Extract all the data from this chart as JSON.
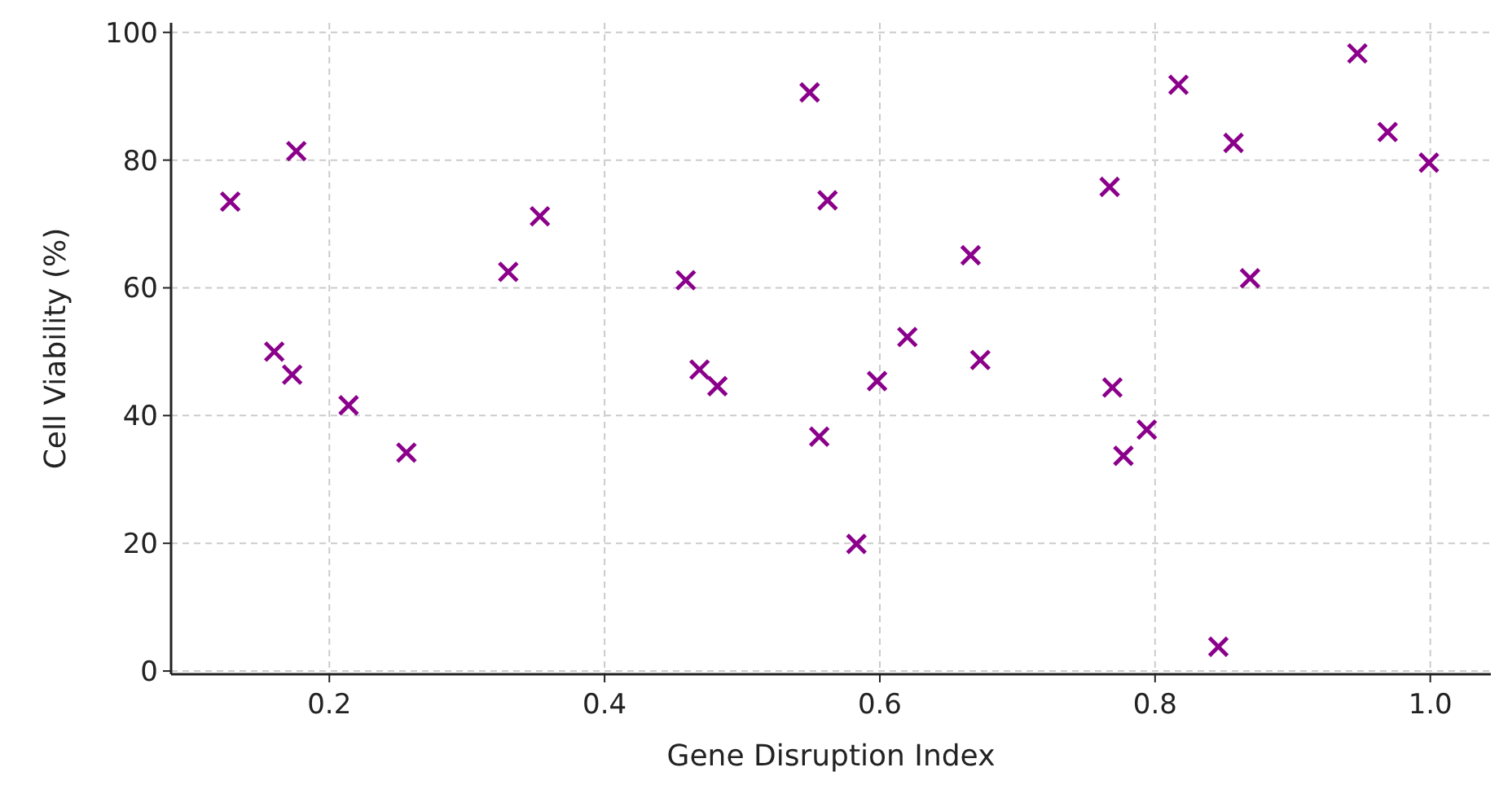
{
  "chart_data": {
    "type": "scatter",
    "xlabel": "Gene Disruption Index",
    "ylabel": "Cell Viability (%)",
    "x": [
      0.128,
      0.176,
      0.16,
      0.173,
      0.214,
      0.256,
      0.33,
      0.353,
      0.459,
      0.469,
      0.482,
      0.549,
      0.556,
      0.562,
      0.583,
      0.598,
      0.62,
      0.666,
      0.673,
      0.767,
      0.769,
      0.777,
      0.794,
      0.817,
      0.846,
      0.857,
      0.869,
      0.947,
      0.969,
      0.999
    ],
    "series": [
      {
        "color": "#8b008b",
        "values": [
          73.5,
          81.4,
          50.0,
          46.4,
          41.6,
          34.2,
          62.5,
          71.2,
          61.2,
          47.2,
          44.6,
          90.6,
          36.7,
          73.7,
          19.9,
          45.4,
          52.3,
          65.1,
          48.7,
          75.8,
          44.4,
          33.7,
          37.8,
          91.8,
          3.8,
          82.7,
          61.5,
          96.7,
          84.4,
          79.6
        ]
      }
    ],
    "xlim": [
      0.085,
      1.044
    ],
    "ylim": [
      -0.5,
      101.5
    ],
    "xticks": [
      {
        "value": 0.2,
        "label": "0.2"
      },
      {
        "value": 0.4,
        "label": "0.4"
      },
      {
        "value": 0.6,
        "label": "0.6"
      },
      {
        "value": 0.8,
        "label": "0.8"
      },
      {
        "value": 1.0,
        "label": "1.0"
      }
    ],
    "yticks": [
      0,
      20,
      40,
      60,
      80,
      100
    ],
    "grid": true,
    "marker": "cross"
  }
}
